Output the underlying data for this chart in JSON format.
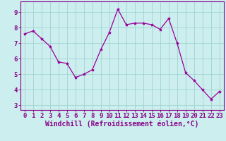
{
  "x": [
    0,
    1,
    2,
    3,
    4,
    5,
    6,
    7,
    8,
    9,
    10,
    11,
    12,
    13,
    14,
    15,
    16,
    17,
    18,
    19,
    20,
    21,
    22,
    23
  ],
  "y": [
    7.6,
    7.8,
    7.3,
    6.8,
    5.8,
    5.7,
    4.8,
    5.0,
    5.3,
    6.6,
    7.7,
    9.2,
    8.2,
    8.3,
    8.3,
    8.2,
    7.9,
    8.6,
    7.0,
    5.1,
    4.6,
    4.0,
    3.4,
    3.9
  ],
  "line_color": "#990099",
  "marker": "*",
  "marker_size": 3,
  "bg_color": "#cceeee",
  "grid_color": "#99cccc",
  "xlabel": "Windchill (Refroidissement éolien,°C)",
  "xlabel_fontsize": 7,
  "ylabel_ticks": [
    3,
    4,
    5,
    6,
    7,
    8,
    9
  ],
  "xlim": [
    -0.5,
    23.5
  ],
  "ylim": [
    2.7,
    9.7
  ],
  "tick_color": "#880088",
  "tick_fontsize": 6.5,
  "spine_color": "#880088",
  "axis_label_color": "#880088"
}
